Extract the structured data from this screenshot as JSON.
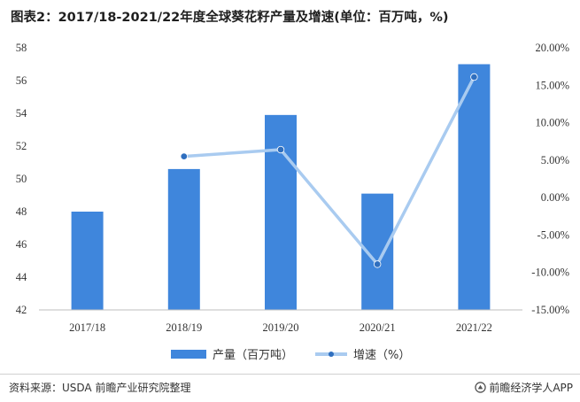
{
  "title": "图表2：2017/18-2021/22年度全球葵花籽产量及增速(单位：百万吨，%)",
  "chart_data": {
    "type": "bar+line",
    "categories": [
      "2017/18",
      "2018/19",
      "2019/20",
      "2020/21",
      "2021/22"
    ],
    "series": [
      {
        "name": "产量（百万吨）",
        "type": "bar",
        "axis": "left",
        "values": [
          48.0,
          50.6,
          53.9,
          49.1,
          57.0
        ]
      },
      {
        "name": "增速（%）",
        "type": "line",
        "axis": "right",
        "values": [
          null,
          5.5,
          6.4,
          -8.9,
          16.1
        ]
      }
    ],
    "y_left": {
      "range": [
        42,
        58
      ],
      "ticks": [
        "42",
        "44",
        "46",
        "48",
        "50",
        "52",
        "54",
        "56",
        "58"
      ]
    },
    "y_right": {
      "range": [
        -15,
        20
      ],
      "ticks": [
        "-15.00%",
        "-10.00%",
        "-5.00%",
        "0.00%",
        "5.00%",
        "10.00%",
        "15.00%",
        "20.00%"
      ]
    },
    "grid": false,
    "legend_position": "bottom",
    "colors": {
      "bar": "#3f86dc",
      "line": "#a9cbf0",
      "marker": "#2f6fbf"
    }
  },
  "footer": {
    "source": "资料来源：USDA 前瞻产业研究院整理",
    "brand": "前瞻经济学人APP"
  }
}
